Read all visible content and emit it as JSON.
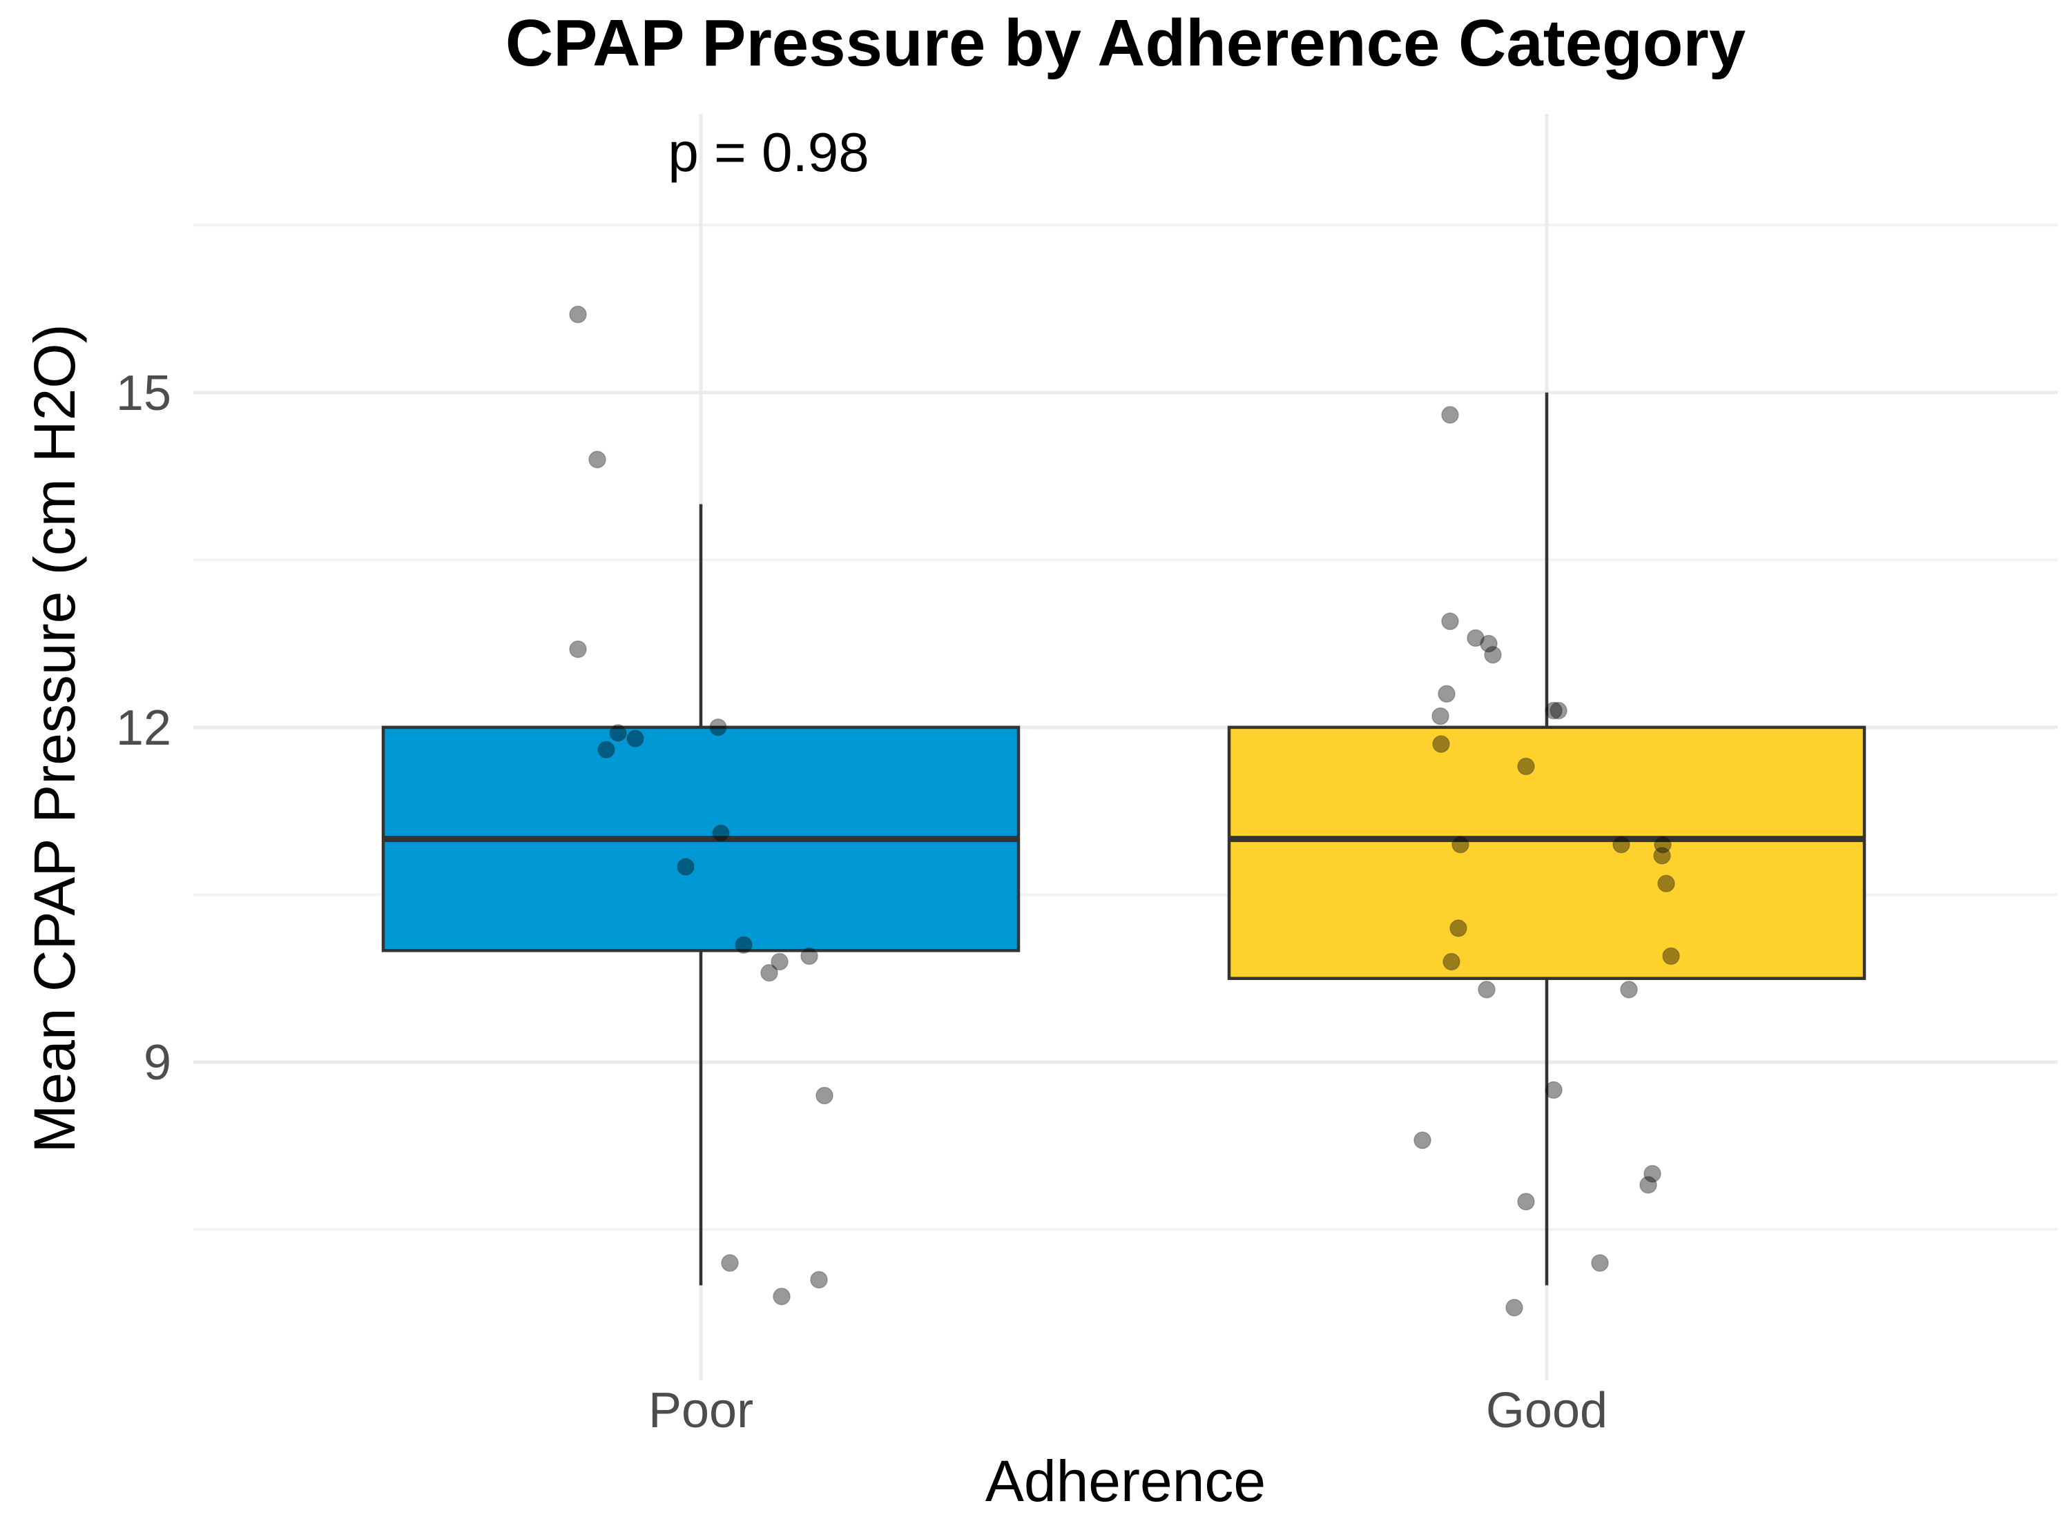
{
  "chart_data": {
    "type": "box",
    "title": "CPAP Pressure by Adherence Category",
    "xlabel": "Adherence",
    "ylabel": "Mean CPAP Pressure (cm H2O)",
    "annotation": "p = 0.98",
    "categories": [
      "Poor",
      "Good"
    ],
    "ylim": [
      6.4,
      17.6
    ],
    "yticks": [
      9,
      12,
      15
    ],
    "minor_yticks": [
      7.5,
      10.5,
      13.5,
      16.5
    ],
    "grid": true,
    "legend": "none",
    "colors": {
      "Poor": "#0099d6",
      "Good": "#ffd12c"
    },
    "boxes": [
      {
        "category": "Poor",
        "whisker_low": 7.0,
        "q1": 10.0,
        "median": 11.0,
        "q3": 12.0,
        "whisker_high": 14.0
      },
      {
        "category": "Good",
        "whisker_low": 7.0,
        "q1": 9.75,
        "median": 11.0,
        "q3": 12.0,
        "whisker_high": 15.0
      }
    ],
    "points": [
      {
        "category": "Poor",
        "values": [
          15.7,
          14.4,
          12.7,
          11.95,
          11.9,
          11.8,
          12.0,
          11.05,
          10.75,
          10.05,
          9.9,
          9.8,
          9.95,
          8.7,
          7.2,
          6.9,
          7.05
        ]
      },
      {
        "category": "Good",
        "values": [
          14.8,
          12.95,
          12.8,
          12.75,
          12.65,
          12.3,
          12.15,
          12.15,
          12.1,
          11.85,
          11.65,
          10.95,
          10.95,
          10.95,
          10.85,
          10.6,
          10.2,
          9.95,
          9.9,
          9.65,
          9.65,
          8.75,
          8.3,
          8.0,
          7.9,
          7.75,
          7.2,
          6.8
        ]
      }
    ]
  }
}
